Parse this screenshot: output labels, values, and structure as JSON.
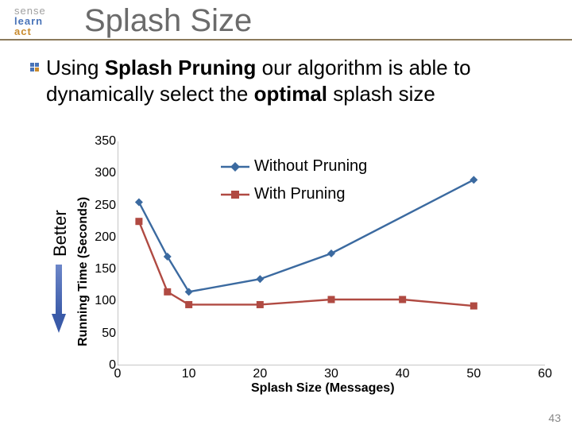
{
  "logo": {
    "l1": "sense",
    "l2": "learn",
    "l3": "act"
  },
  "title": "Splash Size",
  "bullet_plain1": "Using ",
  "bullet_bold1": "Splash Pruning",
  "bullet_plain2": " our algorithm is able to dynamically select the ",
  "bullet_bold2": "optimal",
  "bullet_plain3": " splash size",
  "better": "Better",
  "chart": {
    "type": "line",
    "ylabel": "Running Time (Seconds)",
    "xlabel": "Splash Size (Messages)",
    "xlim": [
      0,
      60
    ],
    "ylim": [
      0,
      350
    ],
    "yticks": [
      0,
      50,
      100,
      150,
      200,
      250,
      300,
      350
    ],
    "xticks": [
      0,
      10,
      20,
      30,
      40,
      50,
      60
    ],
    "background": "#ffffff",
    "axis_color": "#8c8c8c",
    "grid": false,
    "series": [
      {
        "name": "Without Pruning",
        "color": "#3b6aa0",
        "marker": "diamond",
        "marker_size": 10,
        "line_width": 2.4,
        "x": [
          3,
          7,
          10,
          20,
          30,
          50
        ],
        "y": [
          255,
          170,
          115,
          135,
          175,
          290
        ]
      },
      {
        "name": "With Pruning",
        "color": "#b04a42",
        "marker": "square",
        "marker_size": 9,
        "line_width": 2.4,
        "x": [
          3,
          7,
          10,
          20,
          30,
          40,
          50
        ],
        "y": [
          225,
          115,
          95,
          95,
          103,
          103,
          93
        ]
      }
    ],
    "legend": {
      "x_offset": 130,
      "y_offset": 20,
      "fontsize": 20
    }
  },
  "page_number": "43"
}
